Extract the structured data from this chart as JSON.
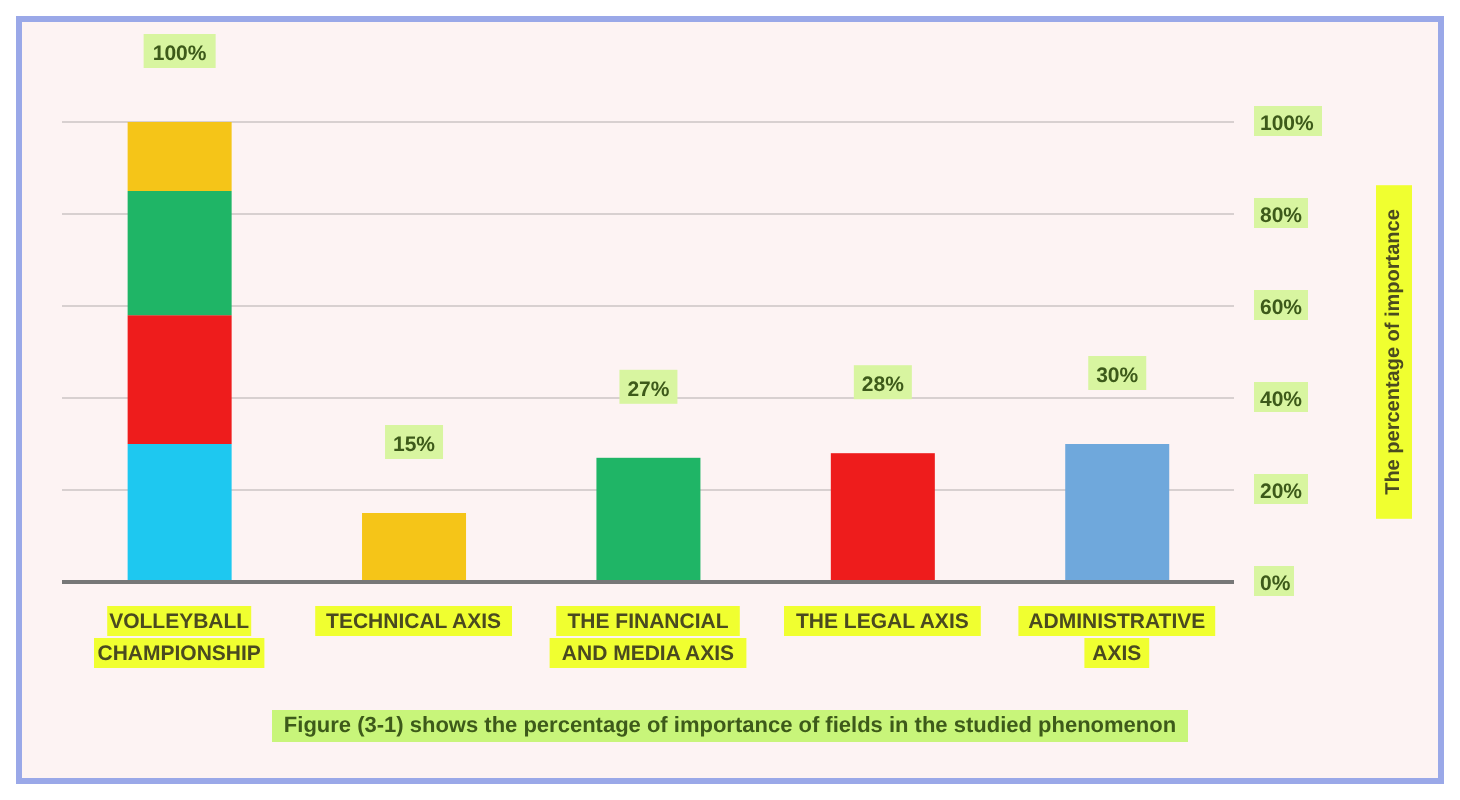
{
  "chart_data": {
    "type": "bar",
    "stacked": true,
    "categories": [
      "VOLLEYBALL CHAMPIONSHIP",
      "TECHNICAL AXIS",
      "THE FINANCIAL AND MEDIA AXIS",
      "THE LEGAL AXIS",
      "ADMINISTRATIVE AXIS"
    ],
    "series": [
      {
        "color": "#1ec8f0",
        "values": [
          30,
          null,
          null,
          null,
          null
        ]
      },
      {
        "color": "#ee1c1c",
        "values": [
          28,
          null,
          null,
          28,
          null
        ]
      },
      {
        "color": "#1fb566",
        "values": [
          27,
          null,
          27,
          null,
          null
        ]
      },
      {
        "color": "#f5c518",
        "values": [
          15,
          15,
          null,
          null,
          null
        ]
      },
      {
        "color": "#6fa8dc",
        "values": [
          null,
          null,
          null,
          null,
          30
        ]
      }
    ],
    "totals": [
      "100%",
      "15%",
      "27%",
      "28%",
      "30%"
    ],
    "ylabel": "The percentage of importance",
    "ylim": [
      0,
      100
    ],
    "yticks": [
      {
        "value": 0,
        "label": "0%"
      },
      {
        "value": 20,
        "label": "20%"
      },
      {
        "value": 40,
        "label": "40%"
      },
      {
        "value": 60,
        "label": "60%"
      },
      {
        "value": 80,
        "label": "80%"
      },
      {
        "value": 100,
        "label": "100%"
      }
    ],
    "grid": "y",
    "annotations": [
      "Figure (3-1) shows the percentage of importance of fields in the studied phenomenon"
    ]
  }
}
